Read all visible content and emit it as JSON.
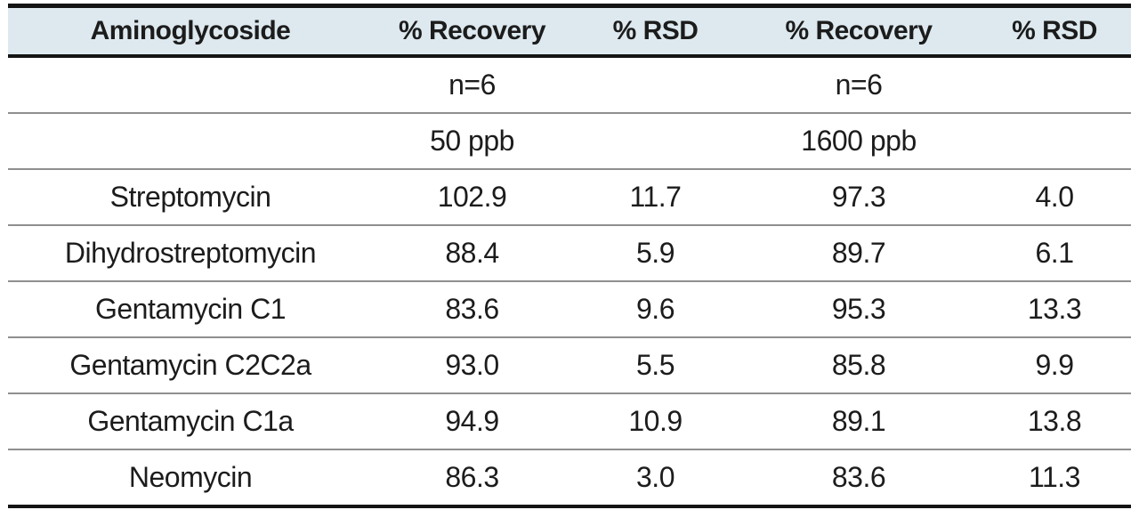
{
  "colors": {
    "header_bg": "#dde9ef",
    "text": "#1c1c1c",
    "heavy_rule": "#141414",
    "light_rule": "#8f8f8f",
    "page_bg": "#ffffff"
  },
  "table": {
    "header": [
      "Aminoglycoside",
      "% Recovery",
      "% RSD",
      "% Recovery",
      "% RSD"
    ],
    "subrows": [
      {
        "cells": [
          "",
          "n=6",
          "",
          "n=6",
          ""
        ]
      },
      {
        "cells": [
          "",
          "50 ppb",
          "",
          "1600 ppb",
          ""
        ]
      }
    ],
    "rows": [
      {
        "cells": [
          "Streptomycin",
          "102.9",
          "11.7",
          "97.3",
          "4.0"
        ]
      },
      {
        "cells": [
          "Dihydrostreptomycin",
          "88.4",
          "5.9",
          "89.7",
          "6.1"
        ]
      },
      {
        "cells": [
          "Gentamycin C1",
          "83.6",
          "9.6",
          "95.3",
          "13.3"
        ]
      },
      {
        "cells": [
          "Gentamycin C2C2a",
          "93.0",
          "5.5",
          "85.8",
          "9.9"
        ]
      },
      {
        "cells": [
          "Gentamycin C1a",
          "94.9",
          "10.9",
          "89.1",
          "13.8"
        ]
      },
      {
        "cells": [
          "Neomycin",
          "86.3",
          "3.0",
          "83.6",
          "11.3"
        ]
      }
    ]
  }
}
